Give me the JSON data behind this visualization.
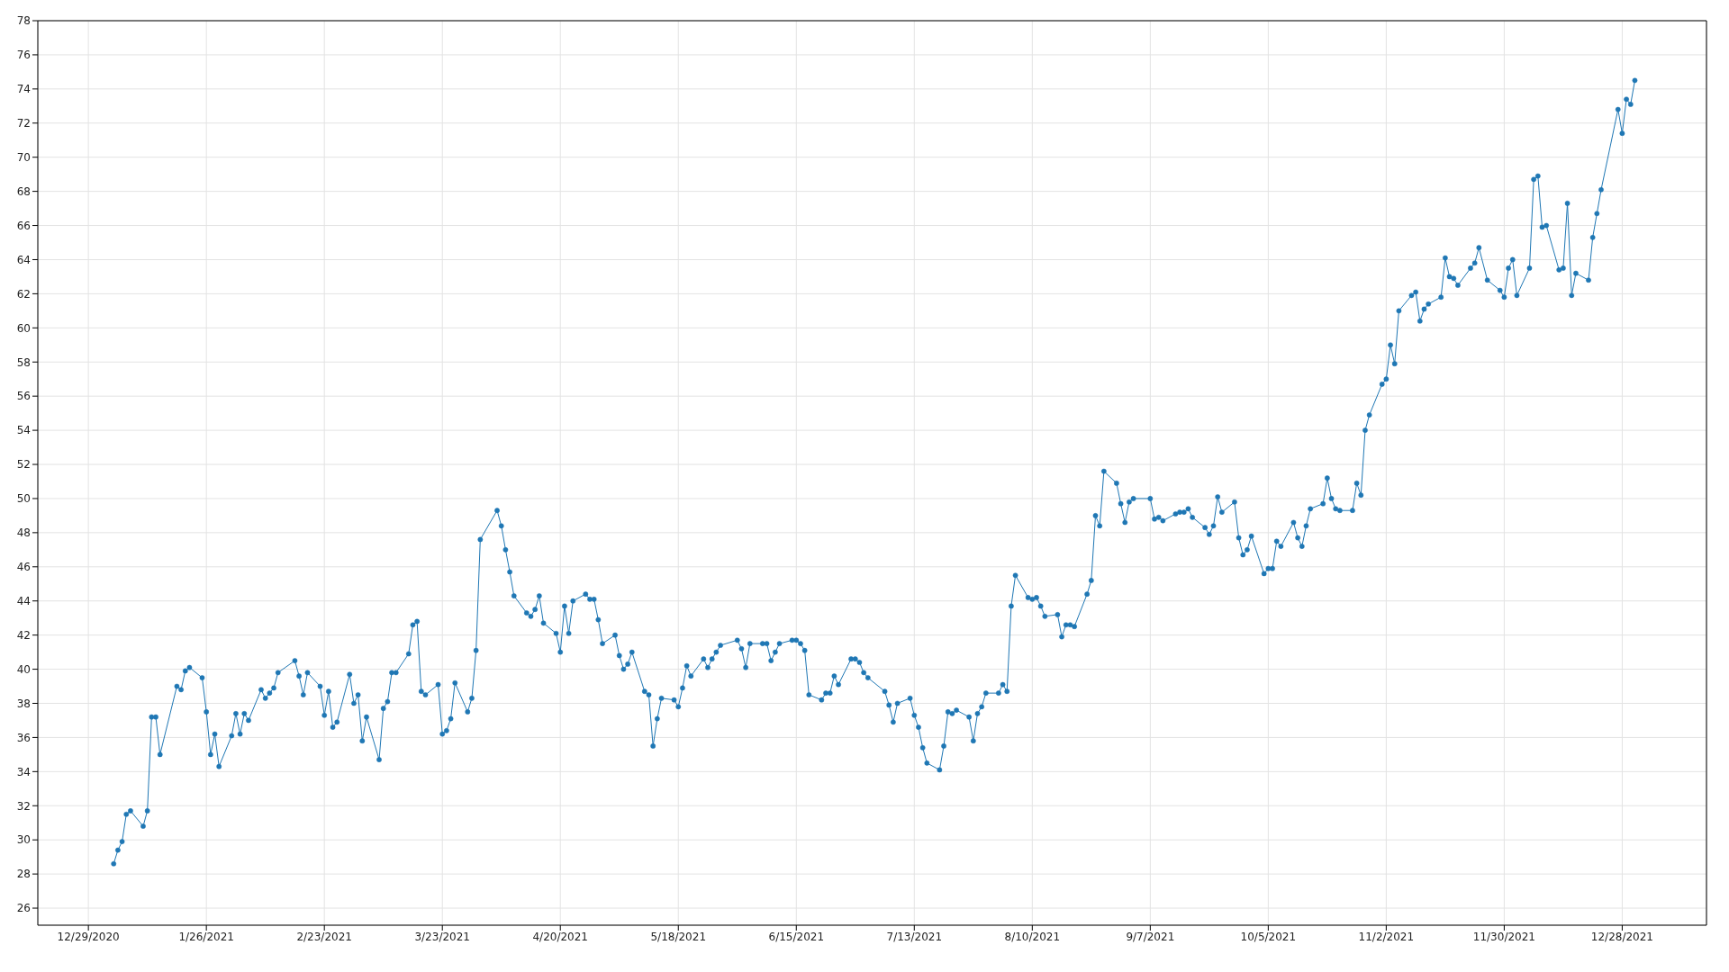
{
  "chart_data": {
    "type": "line",
    "marker": "circle",
    "line_style": "solid",
    "grid": true,
    "legend": false,
    "xlim": [
      "2020-12-17",
      "2022-01-17"
    ],
    "xticks": [
      {
        "value": "2020-12-29",
        "label": "12/29/2020"
      },
      {
        "value": "2021-01-26",
        "label": "1/26/2021"
      },
      {
        "value": "2021-02-23",
        "label": "2/23/2021"
      },
      {
        "value": "2021-03-23",
        "label": "3/23/2021"
      },
      {
        "value": "2021-04-20",
        "label": "4/20/2021"
      },
      {
        "value": "2021-05-18",
        "label": "5/18/2021"
      },
      {
        "value": "2021-06-15",
        "label": "6/15/2021"
      },
      {
        "value": "2021-07-13",
        "label": "7/13/2021"
      },
      {
        "value": "2021-08-10",
        "label": "8/10/2021"
      },
      {
        "value": "2021-09-07",
        "label": "9/7/2021"
      },
      {
        "value": "2021-10-05",
        "label": "10/5/2021"
      },
      {
        "value": "2021-11-02",
        "label": "11/2/2021"
      },
      {
        "value": "2021-11-30",
        "label": "11/30/2021"
      },
      {
        "value": "2021-12-28",
        "label": "12/28/2021"
      }
    ],
    "ylim": [
      25,
      78
    ],
    "yticks": [
      26,
      28,
      30,
      32,
      34,
      36,
      38,
      40,
      42,
      44,
      46,
      48,
      50,
      52,
      54,
      56,
      58,
      60,
      62,
      64,
      66,
      68,
      70,
      72,
      74,
      76,
      78
    ],
    "series": [
      {
        "color": "#1f77b4",
        "x": [
          "2021-01-04",
          "2021-01-05",
          "2021-01-06",
          "2021-01-07",
          "2021-01-08",
          "2021-01-11",
          "2021-01-12",
          "2021-01-13",
          "2021-01-14",
          "2021-01-15",
          "2021-01-19",
          "2021-01-20",
          "2021-01-21",
          "2021-01-22",
          "2021-01-25",
          "2021-01-26",
          "2021-01-27",
          "2021-01-28",
          "2021-01-29",
          "2021-02-01",
          "2021-02-02",
          "2021-02-03",
          "2021-02-04",
          "2021-02-05",
          "2021-02-08",
          "2021-02-09",
          "2021-02-10",
          "2021-02-11",
          "2021-02-12",
          "2021-02-16",
          "2021-02-17",
          "2021-02-18",
          "2021-02-19",
          "2021-02-22",
          "2021-02-23",
          "2021-02-24",
          "2021-02-25",
          "2021-02-26",
          "2021-03-01",
          "2021-03-02",
          "2021-03-03",
          "2021-03-04",
          "2021-03-05",
          "2021-03-08",
          "2021-03-09",
          "2021-03-10",
          "2021-03-11",
          "2021-03-12",
          "2021-03-15",
          "2021-03-16",
          "2021-03-17",
          "2021-03-18",
          "2021-03-19",
          "2021-03-22",
          "2021-03-23",
          "2021-03-24",
          "2021-03-25",
          "2021-03-26",
          "2021-03-29",
          "2021-03-30",
          "2021-03-31",
          "2021-04-01",
          "2021-04-05",
          "2021-04-06",
          "2021-04-07",
          "2021-04-08",
          "2021-04-09",
          "2021-04-12",
          "2021-04-13",
          "2021-04-14",
          "2021-04-15",
          "2021-04-16",
          "2021-04-19",
          "2021-04-20",
          "2021-04-21",
          "2021-04-22",
          "2021-04-23",
          "2021-04-26",
          "2021-04-27",
          "2021-04-28",
          "2021-04-29",
          "2021-04-30",
          "2021-05-03",
          "2021-05-04",
          "2021-05-05",
          "2021-05-06",
          "2021-05-07",
          "2021-05-10",
          "2021-05-11",
          "2021-05-12",
          "2021-05-13",
          "2021-05-14",
          "2021-05-17",
          "2021-05-18",
          "2021-05-19",
          "2021-05-20",
          "2021-05-21",
          "2021-05-24",
          "2021-05-25",
          "2021-05-26",
          "2021-05-27",
          "2021-05-28",
          "2021-06-01",
          "2021-06-02",
          "2021-06-03",
          "2021-06-04",
          "2021-06-07",
          "2021-06-08",
          "2021-06-09",
          "2021-06-10",
          "2021-06-11",
          "2021-06-14",
          "2021-06-15",
          "2021-06-16",
          "2021-06-17",
          "2021-06-18",
          "2021-06-21",
          "2021-06-22",
          "2021-06-23",
          "2021-06-24",
          "2021-06-25",
          "2021-06-28",
          "2021-06-29",
          "2021-06-30",
          "2021-07-01",
          "2021-07-02",
          "2021-07-06",
          "2021-07-07",
          "2021-07-08",
          "2021-07-09",
          "2021-07-12",
          "2021-07-13",
          "2021-07-14",
          "2021-07-15",
          "2021-07-16",
          "2021-07-19",
          "2021-07-20",
          "2021-07-21",
          "2021-07-22",
          "2021-07-23",
          "2021-07-26",
          "2021-07-27",
          "2021-07-28",
          "2021-07-29",
          "2021-07-30",
          "2021-08-02",
          "2021-08-03",
          "2021-08-04",
          "2021-08-05",
          "2021-08-06",
          "2021-08-09",
          "2021-08-10",
          "2021-08-11",
          "2021-08-12",
          "2021-08-13",
          "2021-08-16",
          "2021-08-17",
          "2021-08-18",
          "2021-08-19",
          "2021-08-20",
          "2021-08-23",
          "2021-08-24",
          "2021-08-25",
          "2021-08-26",
          "2021-08-27",
          "2021-08-30",
          "2021-08-31",
          "2021-09-01",
          "2021-09-02",
          "2021-09-03",
          "2021-09-07",
          "2021-09-08",
          "2021-09-09",
          "2021-09-10",
          "2021-09-13",
          "2021-09-14",
          "2021-09-15",
          "2021-09-16",
          "2021-09-17",
          "2021-09-20",
          "2021-09-21",
          "2021-09-22",
          "2021-09-23",
          "2021-09-24",
          "2021-09-27",
          "2021-09-28",
          "2021-09-29",
          "2021-09-30",
          "2021-10-01",
          "2021-10-04",
          "2021-10-05",
          "2021-10-06",
          "2021-10-07",
          "2021-10-08",
          "2021-10-11",
          "2021-10-12",
          "2021-10-13",
          "2021-10-14",
          "2021-10-15",
          "2021-10-18",
          "2021-10-19",
          "2021-10-20",
          "2021-10-21",
          "2021-10-22",
          "2021-10-25",
          "2021-10-26",
          "2021-10-27",
          "2021-10-28",
          "2021-10-29",
          "2021-11-01",
          "2021-11-02",
          "2021-11-03",
          "2021-11-04",
          "2021-11-05",
          "2021-11-08",
          "2021-11-09",
          "2021-11-10",
          "2021-11-11",
          "2021-11-12",
          "2021-11-15",
          "2021-11-16",
          "2021-11-17",
          "2021-11-18",
          "2021-11-19",
          "2021-11-22",
          "2021-11-23",
          "2021-11-24",
          "2021-11-26",
          "2021-11-29",
          "2021-11-30",
          "2021-12-01",
          "2021-12-02",
          "2021-12-03",
          "2021-12-06",
          "2021-12-07",
          "2021-12-08",
          "2021-12-09",
          "2021-12-10",
          "2021-12-13",
          "2021-12-14",
          "2021-12-15",
          "2021-12-16",
          "2021-12-17",
          "2021-12-20",
          "2021-12-21",
          "2021-12-22",
          "2021-12-23",
          "2021-12-27",
          "2021-12-28",
          "2021-12-29",
          "2021-12-30",
          "2021-12-31"
        ],
        "values": [
          28.6,
          29.4,
          29.9,
          31.5,
          31.7,
          30.8,
          31.7,
          37.2,
          37.2,
          35.0,
          39.0,
          38.8,
          39.9,
          40.1,
          39.5,
          37.5,
          35.0,
          36.2,
          34.3,
          36.1,
          37.4,
          36.2,
          37.4,
          37.0,
          38.8,
          38.3,
          38.6,
          38.9,
          39.8,
          40.5,
          39.6,
          38.5,
          39.8,
          39.0,
          37.3,
          38.7,
          36.6,
          36.9,
          39.7,
          38.0,
          38.5,
          35.8,
          37.2,
          34.7,
          37.7,
          38.1,
          39.8,
          39.8,
          40.9,
          42.6,
          42.8,
          38.7,
          38.5,
          39.1,
          36.2,
          36.4,
          37.1,
          39.2,
          37.5,
          38.3,
          41.1,
          47.6,
          49.3,
          48.4,
          47.0,
          45.7,
          44.3,
          43.3,
          43.1,
          43.5,
          44.3,
          42.7,
          42.1,
          41.0,
          43.7,
          42.1,
          44.0,
          44.4,
          44.1,
          44.1,
          42.9,
          41.5,
          42.0,
          40.8,
          40.0,
          40.3,
          41.0,
          38.7,
          38.5,
          35.5,
          37.1,
          38.3,
          38.2,
          37.8,
          38.9,
          40.2,
          39.6,
          40.6,
          40.1,
          40.6,
          41.0,
          41.4,
          41.7,
          41.2,
          40.1,
          41.5,
          41.5,
          41.5,
          40.5,
          41.0,
          41.5,
          41.7,
          41.7,
          41.5,
          41.1,
          38.5,
          38.2,
          38.6,
          38.6,
          39.6,
          39.1,
          40.6,
          40.6,
          40.4,
          39.8,
          39.5,
          38.7,
          37.9,
          36.9,
          38.0,
          38.3,
          37.3,
          36.6,
          35.4,
          34.5,
          34.1,
          35.5,
          37.5,
          37.4,
          37.6,
          37.2,
          35.8,
          37.4,
          37.8,
          38.6,
          38.6,
          39.1,
          38.7,
          43.7,
          45.5,
          44.2,
          44.1,
          44.2,
          43.7,
          43.1,
          43.2,
          41.9,
          42.6,
          42.6,
          42.5,
          44.4,
          45.2,
          49.0,
          48.4,
          51.6,
          50.9,
          49.7,
          48.6,
          49.8,
          50.0,
          50.0,
          48.8,
          48.9,
          48.7,
          49.1,
          49.2,
          49.2,
          49.4,
          48.9,
          48.3,
          47.9,
          48.4,
          50.1,
          49.2,
          49.8,
          47.7,
          46.7,
          47.0,
          47.8,
          45.6,
          45.9,
          45.9,
          47.5,
          47.2,
          48.6,
          47.7,
          47.2,
          48.4,
          49.4,
          49.7,
          51.2,
          50.0,
          49.4,
          49.3,
          49.3,
          50.9,
          50.2,
          54.0,
          54.9,
          56.7,
          57.0,
          59.0,
          57.9,
          61.0,
          61.9,
          62.1,
          60.4,
          61.1,
          61.4,
          61.8,
          64.1,
          63.0,
          62.9,
          62.5,
          63.5,
          63.8,
          64.7,
          62.8,
          62.2,
          61.8,
          63.5,
          64.0,
          61.9,
          63.5,
          68.7,
          68.9,
          65.9,
          66.0,
          63.4,
          63.5,
          67.3,
          61.9,
          63.2,
          62.8,
          65.3,
          66.7,
          68.1,
          72.8,
          71.4,
          73.4,
          73.1,
          74.5
        ]
      }
    ]
  }
}
